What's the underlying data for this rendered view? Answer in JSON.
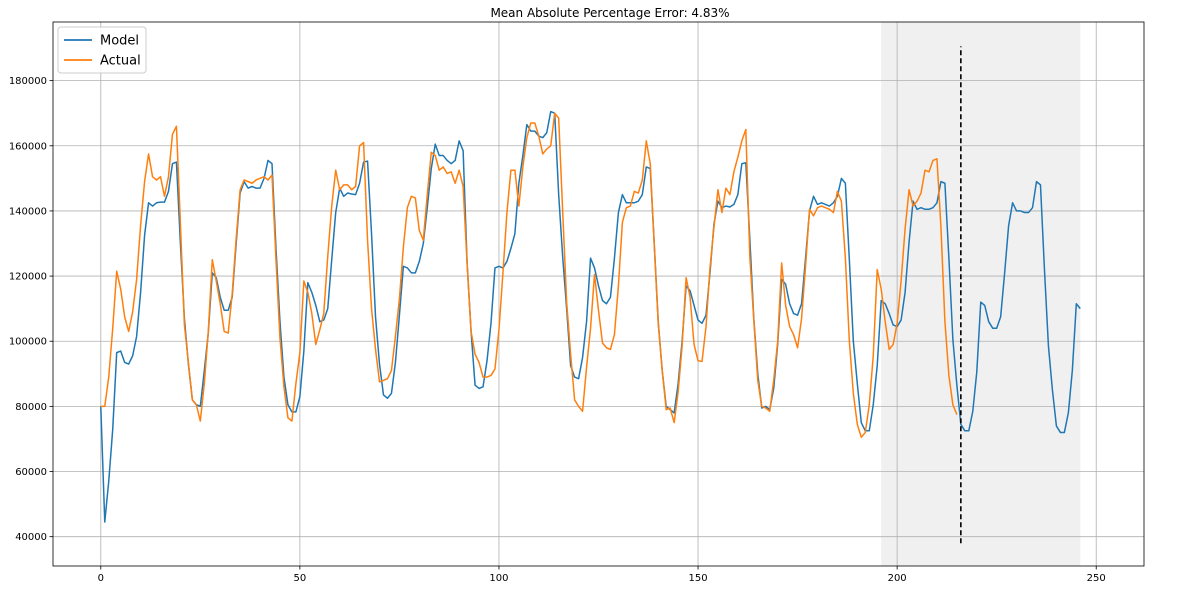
{
  "chart_data": {
    "type": "line",
    "title": "Mean Absolute Percentage Error: 4.83%",
    "xlabel": "",
    "ylabel": "",
    "xlim": [
      -12,
      262
    ],
    "ylim": [
      31000,
      198000
    ],
    "xticks": [
      0,
      50,
      100,
      150,
      200,
      250
    ],
    "yticks": [
      40000,
      60000,
      80000,
      100000,
      120000,
      140000,
      160000,
      180000
    ],
    "grid": true,
    "legend_position": "top-left",
    "forecast_region": {
      "x_start": 196,
      "x_end": 246,
      "color": "#f0f0f0"
    },
    "vertical_marker": {
      "x": 216,
      "y_start": 38000,
      "y_end": 190500,
      "style": "dashed",
      "color": "#000000"
    },
    "series": [
      {
        "name": "Model",
        "color": "#1f77b4",
        "x_start": 0,
        "values": [
          80000,
          44500,
          57000,
          73000,
          96500,
          97000,
          93500,
          93000,
          95500,
          101500,
          115000,
          132500,
          142500,
          141500,
          142500,
          142700,
          142700,
          146000,
          154500,
          155000,
          130000,
          107000,
          93000,
          82000,
          80500,
          80000,
          91000,
          102500,
          121000,
          119500,
          113500,
          109500,
          109500,
          113500,
          130000,
          145500,
          149000,
          147000,
          147500,
          147000,
          147000,
          150000,
          155500,
          154500,
          128500,
          106000,
          89000,
          80500,
          78300,
          78300,
          83000,
          97000,
          118000,
          115000,
          111000,
          106000,
          106500,
          110000,
          125000,
          139500,
          147000,
          144500,
          145500,
          145200,
          145000,
          148500,
          155000,
          155300,
          133000,
          107500,
          93000,
          83500,
          82500,
          84000,
          93500,
          108000,
          123000,
          122500,
          121000,
          121000,
          124500,
          130000,
          141000,
          153000,
          160500,
          157000,
          157000,
          155500,
          154500,
          155500,
          161500,
          158500,
          124000,
          103000,
          86500,
          85500,
          86000,
          94000,
          105500,
          122500,
          123000,
          122500,
          124500,
          128500,
          133000,
          148500,
          157000,
          166500,
          164500,
          164500,
          163000,
          162500,
          164000,
          170500,
          170000,
          145000,
          126000,
          110000,
          92500,
          89000,
          88500,
          95000,
          106000,
          125500,
          122500,
          117000,
          112500,
          111500,
          113500,
          125500,
          139500,
          145000,
          142500,
          142500,
          142500,
          143000,
          145000,
          153500,
          153000,
          130000,
          106000,
          91000,
          80000,
          79000,
          78000,
          87000,
          100000,
          117000,
          115500,
          111000,
          106500,
          105500,
          108000,
          121000,
          136000,
          143000,
          141000,
          141500,
          141200,
          142000,
          145000,
          154500,
          154800,
          131500,
          107000,
          90000,
          79500,
          80000,
          79000,
          85500,
          99000,
          119000,
          117500,
          111500,
          108500,
          108000,
          111500,
          125500,
          140000,
          144500,
          142000,
          142500,
          142000,
          141500,
          142500,
          144500,
          150000,
          148500,
          125000,
          100000,
          87000,
          75000,
          72500,
          72500,
          80500,
          92500,
          112500,
          111500,
          108500,
          105000,
          104500,
          106500,
          115000,
          130500,
          143000,
          140500,
          141000,
          140500,
          140500,
          141000,
          142500,
          149000,
          148500,
          125500,
          100500,
          86500,
          74500,
          72500,
          72500,
          78500,
          90500,
          112000,
          111000,
          106000,
          104000,
          104000,
          107500,
          121000,
          135500,
          142500,
          140000,
          140000,
          139500,
          139500,
          141000,
          149000,
          148000,
          122000,
          98500,
          85000,
          74000,
          72000,
          72000,
          78000,
          91000,
          111500,
          110000
        ]
      },
      {
        "name": "Actual",
        "color": "#ff7f0e",
        "x_start": 0,
        "values": [
          80000,
          80000,
          89000,
          104000,
          121500,
          116000,
          107500,
          103000,
          109000,
          119000,
          135500,
          149000,
          157500,
          150500,
          149500,
          150500,
          144500,
          150500,
          163500,
          166000,
          136000,
          105000,
          93500,
          82000,
          80500,
          75500,
          87000,
          103000,
          125000,
          118500,
          111500,
          103000,
          102500,
          114500,
          131500,
          146500,
          149500,
          149000,
          148500,
          149500,
          150000,
          150500,
          149500,
          151000,
          125000,
          101000,
          86000,
          76500,
          75500,
          87000,
          96500,
          118500,
          115000,
          108500,
          99000,
          103500,
          108500,
          126000,
          141500,
          152500,
          146500,
          148000,
          148000,
          146500,
          147500,
          160000,
          161000,
          131000,
          110000,
          97500,
          87500,
          88000,
          88500,
          91000,
          101500,
          113000,
          129000,
          141000,
          144500,
          144000,
          134000,
          131000,
          145000,
          158000,
          157000,
          152500,
          153500,
          151500,
          152000,
          148500,
          152500,
          147500,
          124000,
          103000,
          96000,
          93500,
          89000,
          89000,
          89500,
          91500,
          103500,
          121000,
          139500,
          152500,
          152500,
          141500,
          153500,
          162500,
          167000,
          167000,
          163000,
          157500,
          159000,
          160000,
          170000,
          168500,
          140000,
          112000,
          96000,
          82000,
          80000,
          78500,
          92000,
          104000,
          120500,
          109500,
          99500,
          98000,
          97500,
          102000,
          117000,
          136500,
          141000,
          141500,
          146000,
          145500,
          149500,
          161500,
          154500,
          129500,
          105500,
          91000,
          79000,
          79500,
          75000,
          84500,
          98500,
          119500,
          113500,
          99000,
          94000,
          93800,
          104500,
          122500,
          135000,
          146500,
          139500,
          147000,
          145000,
          152000,
          156500,
          161500,
          165000,
          126000,
          106500,
          88000,
          80000,
          79500,
          78500,
          88000,
          100000,
          124000,
          111000,
          104500,
          102000,
          98000,
          107000,
          123000,
          140500,
          138500,
          141000,
          141500,
          141000,
          140500,
          139500,
          146000,
          143000,
          125500,
          100000,
          84000,
          74500,
          70500,
          72000,
          80500,
          95500,
          122000,
          116000,
          106000,
          97500,
          99000,
          105500,
          118500,
          134500,
          146500,
          141500,
          143000,
          145500,
          152500,
          152000,
          155500,
          156000,
          135000,
          106000,
          89500,
          80500,
          77500
        ]
      }
    ]
  }
}
